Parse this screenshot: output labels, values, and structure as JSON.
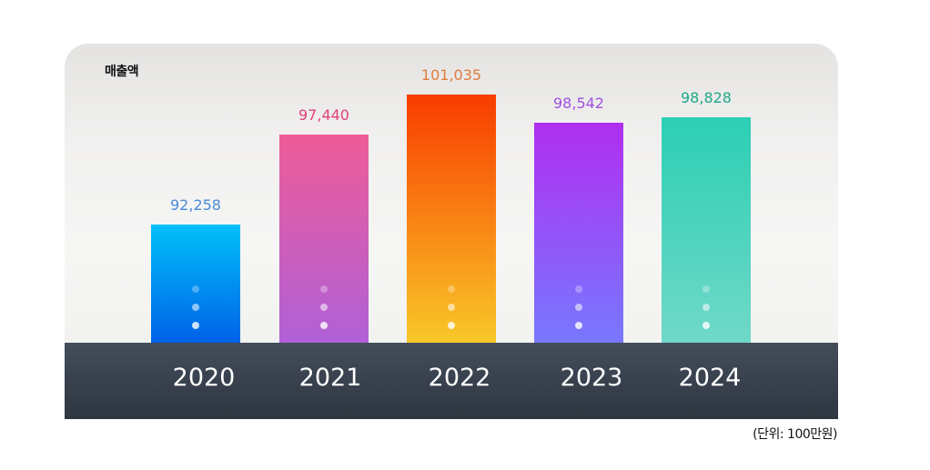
{
  "chart_data": {
    "type": "bar",
    "title": "매출액",
    "unit_note": "(단위: 100만원)",
    "categories": [
      "2020",
      "2021",
      "2022",
      "2023",
      "2024"
    ],
    "values": [
      92258,
      97440,
      101035,
      98542,
      98828
    ],
    "value_labels": [
      "92,258",
      "97,440",
      "101,035",
      "98,542",
      "98,828"
    ],
    "colors": [
      {
        "top": "#00c0f8",
        "bottom": "#0062e8",
        "label": "#4a8ad8"
      },
      {
        "top": "#ee5c98",
        "bottom": "#b060d8",
        "label": "#e0407a"
      },
      {
        "top": "#f83c00",
        "bottom": "#f8c828",
        "label": "#e07c40"
      },
      {
        "top": "#b02ef0",
        "bottom": "#7878ff",
        "label": "#a050e0"
      },
      {
        "top": "#2ccfb4",
        "bottom": "#70d8c8",
        "label": "#20a888"
      }
    ]
  }
}
